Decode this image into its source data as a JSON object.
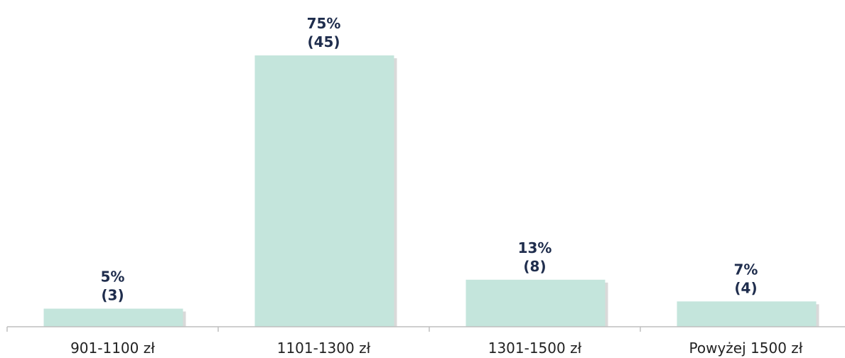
{
  "chart_data": {
    "type": "bar",
    "title": "",
    "xlabel": "",
    "ylabel": "",
    "categories": [
      "901-1100 zł",
      "1101-1300 zł",
      "1301-1500 zł",
      "Powyżej 1500  zł"
    ],
    "values": [
      5,
      75,
      13,
      7
    ],
    "counts": [
      3,
      45,
      8,
      4
    ],
    "value_labels": [
      {
        "percent": "5%",
        "count": "(3)"
      },
      {
        "percent": "75%",
        "count": "(45)"
      },
      {
        "percent": "13%",
        "count": "(8)"
      },
      {
        "percent": "7%",
        "count": "(4)"
      }
    ],
    "ylim": [
      0,
      75
    ],
    "grid": false,
    "legend": "none",
    "colors": {
      "bar": "#c4e5dc",
      "bar_shadow": "#d9d9d9",
      "label": "#1f2d4d",
      "axis": "#bfbfbf"
    }
  }
}
